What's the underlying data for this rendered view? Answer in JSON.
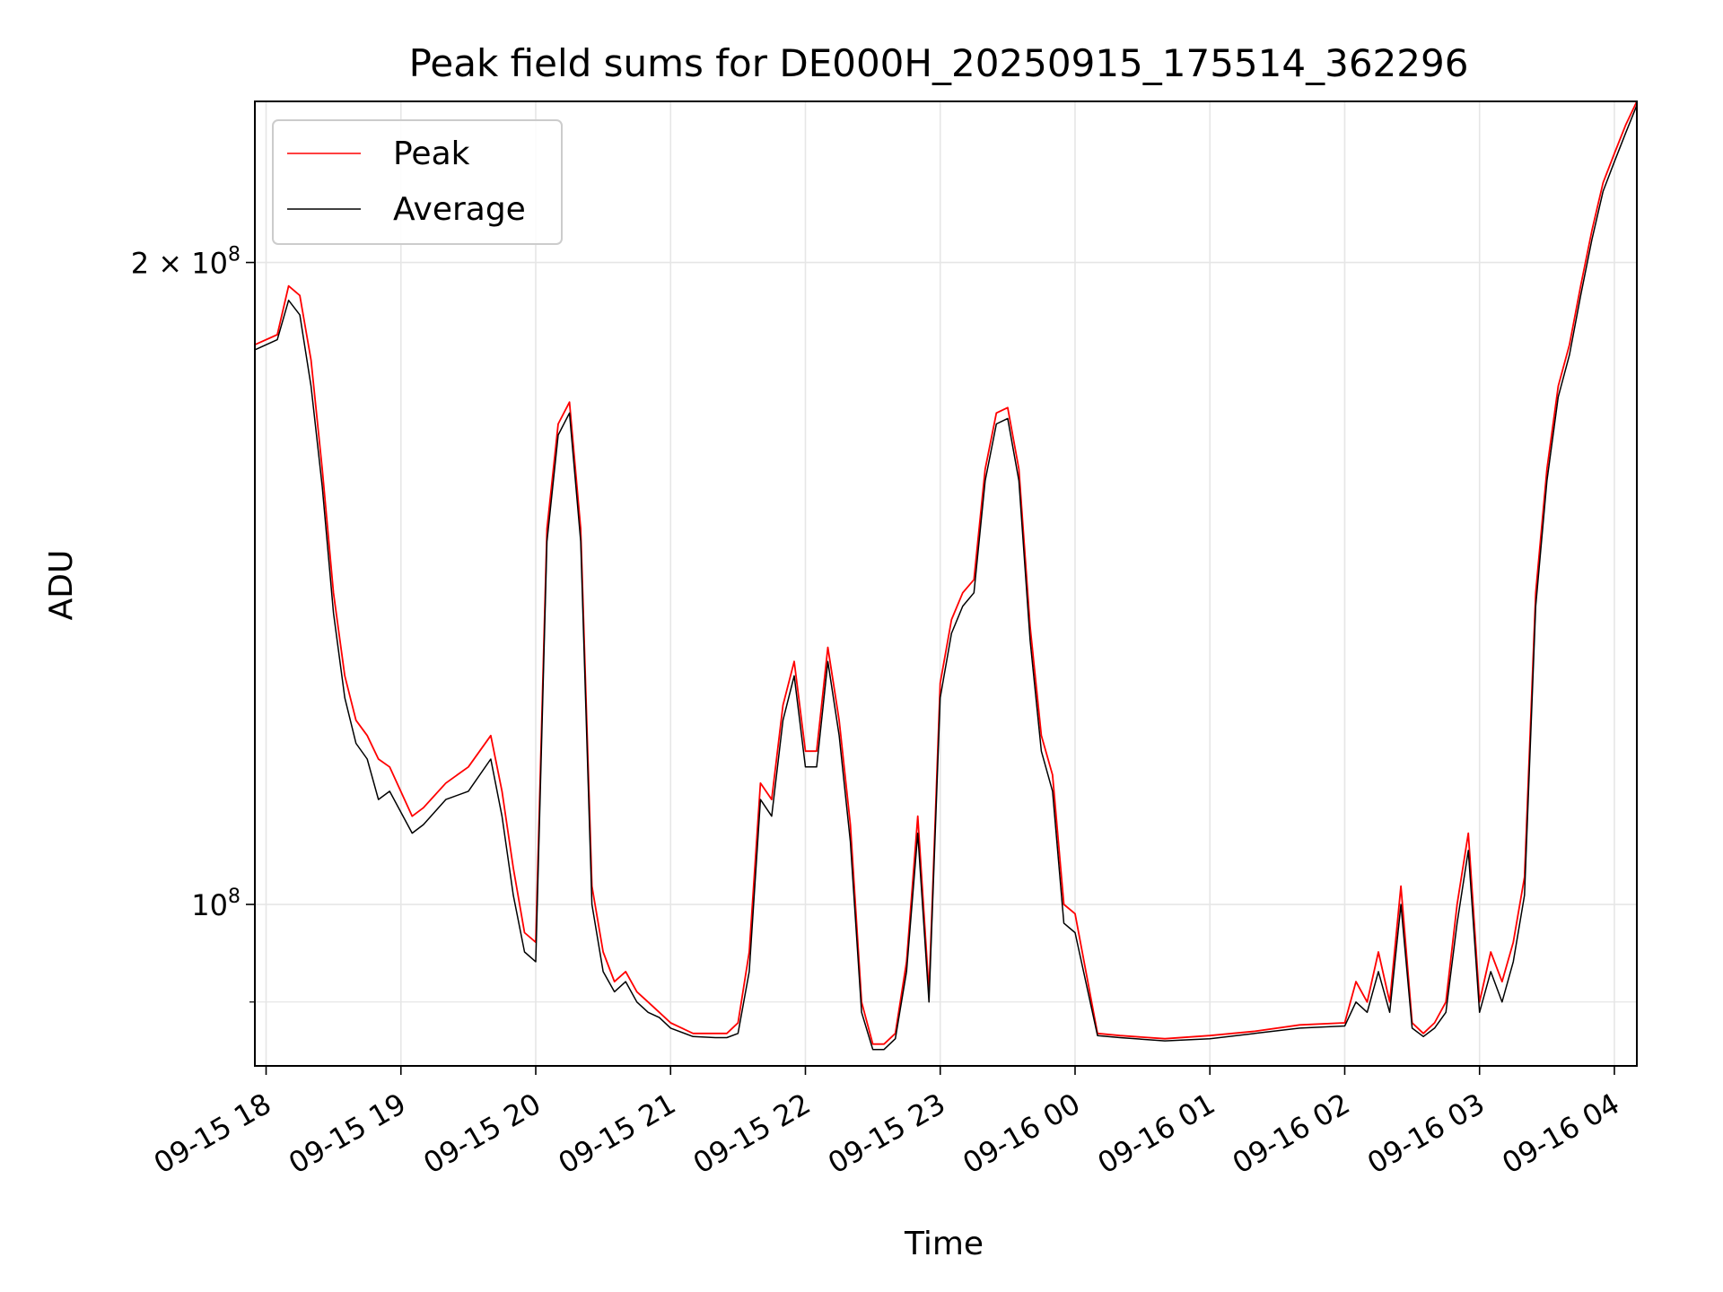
{
  "chart_data": {
    "type": "line",
    "title": "Peak field sums for DE000H_20250915_175514_362296",
    "xlabel": "Time",
    "ylabel": "ADU",
    "y_scale": "log",
    "ylim": [
      84000000,
      238000000
    ],
    "xlim": [
      "2025-09-15 17:55",
      "2025-09-16 04:10"
    ],
    "grid": true,
    "legend_position": "upper-left",
    "x_tick_labels": [
      "09-15 18",
      "09-15 19",
      "09-15 20",
      "09-15 21",
      "09-15 22",
      "09-15 23",
      "09-16 00",
      "09-16 01",
      "09-16 02",
      "09-16 03",
      "09-16 04"
    ],
    "x_tick_values": [
      "2025-09-15 18:00",
      "2025-09-15 19:00",
      "2025-09-15 20:00",
      "2025-09-15 21:00",
      "2025-09-15 22:00",
      "2025-09-15 23:00",
      "2025-09-16 00:00",
      "2025-09-16 01:00",
      "2025-09-16 02:00",
      "2025-09-16 03:00",
      "2025-09-16 04:00"
    ],
    "y_tick_labels": [
      {
        "value": 100000000,
        "mantissa": "",
        "base": "10",
        "exp": "8"
      },
      {
        "value": 200000000,
        "mantissa": "2",
        "base": "10",
        "exp": "8"
      }
    ],
    "series_colors": {
      "Peak": "#ff0000",
      "Average": "#000000"
    },
    "x": [
      "2025-09-15 17:55",
      "2025-09-15 18:05",
      "2025-09-15 18:10",
      "2025-09-15 18:15",
      "2025-09-15 18:20",
      "2025-09-15 18:25",
      "2025-09-15 18:30",
      "2025-09-15 18:35",
      "2025-09-15 18:40",
      "2025-09-15 18:45",
      "2025-09-15 18:50",
      "2025-09-15 18:55",
      "2025-09-15 19:05",
      "2025-09-15 19:10",
      "2025-09-15 19:20",
      "2025-09-15 19:30",
      "2025-09-15 19:40",
      "2025-09-15 19:45",
      "2025-09-15 19:50",
      "2025-09-15 19:55",
      "2025-09-15 20:00",
      "2025-09-15 20:05",
      "2025-09-15 20:10",
      "2025-09-15 20:15",
      "2025-09-15 20:20",
      "2025-09-15 20:25",
      "2025-09-15 20:30",
      "2025-09-15 20:35",
      "2025-09-15 20:40",
      "2025-09-15 20:45",
      "2025-09-15 20:50",
      "2025-09-15 20:55",
      "2025-09-15 21:00",
      "2025-09-15 21:10",
      "2025-09-15 21:20",
      "2025-09-15 21:25",
      "2025-09-15 21:30",
      "2025-09-15 21:35",
      "2025-09-15 21:40",
      "2025-09-15 21:45",
      "2025-09-15 21:50",
      "2025-09-15 21:55",
      "2025-09-15 22:00",
      "2025-09-15 22:05",
      "2025-09-15 22:10",
      "2025-09-15 22:15",
      "2025-09-15 22:20",
      "2025-09-15 22:25",
      "2025-09-15 22:30",
      "2025-09-15 22:35",
      "2025-09-15 22:40",
      "2025-09-15 22:45",
      "2025-09-15 22:50",
      "2025-09-15 22:55",
      "2025-09-15 23:00",
      "2025-09-15 23:05",
      "2025-09-15 23:10",
      "2025-09-15 23:15",
      "2025-09-15 23:20",
      "2025-09-15 23:25",
      "2025-09-15 23:30",
      "2025-09-15 23:35",
      "2025-09-15 23:40",
      "2025-09-15 23:45",
      "2025-09-15 23:50",
      "2025-09-15 23:55",
      "2025-09-16 00:00",
      "2025-09-16 00:10",
      "2025-09-16 00:20",
      "2025-09-16 00:40",
      "2025-09-16 01:00",
      "2025-09-16 01:20",
      "2025-09-16 01:40",
      "2025-09-16 02:00",
      "2025-09-16 02:05",
      "2025-09-16 02:10",
      "2025-09-16 02:15",
      "2025-09-16 02:20",
      "2025-09-16 02:25",
      "2025-09-16 02:30",
      "2025-09-16 02:35",
      "2025-09-16 02:40",
      "2025-09-16 02:45",
      "2025-09-16 02:50",
      "2025-09-16 02:55",
      "2025-09-16 03:00",
      "2025-09-16 03:05",
      "2025-09-16 03:10",
      "2025-09-16 03:15",
      "2025-09-16 03:20",
      "2025-09-16 03:25",
      "2025-09-16 03:30",
      "2025-09-16 03:35",
      "2025-09-16 03:40",
      "2025-09-16 03:45",
      "2025-09-16 03:50",
      "2025-09-16 03:55",
      "2025-09-16 04:00",
      "2025-09-16 04:05",
      "2025-09-16 04:10"
    ],
    "series": [
      {
        "name": "Peak",
        "values": [
          183000000,
          185000000,
          195000000,
          193000000,
          180000000,
          160000000,
          140000000,
          128000000,
          122000000,
          120000000,
          117000000,
          116000000,
          110000000,
          111000000,
          114000000,
          116000000,
          120000000,
          113000000,
          104000000,
          97000000,
          96000000,
          150000000,
          168000000,
          172000000,
          150000000,
          102000000,
          95000000,
          92000000,
          93000000,
          91000000,
          90000000,
          89000000,
          88000000,
          87000000,
          87000000,
          87000000,
          88000000,
          95000000,
          114000000,
          112000000,
          124000000,
          130000000,
          118000000,
          118000000,
          132000000,
          122000000,
          109000000,
          90000000,
          86000000,
          86000000,
          87000000,
          94000000,
          110000000,
          91000000,
          127000000,
          136000000,
          140000000,
          142000000,
          160000000,
          170000000,
          171000000,
          160000000,
          135000000,
          120000000,
          115000000,
          100000000,
          99000000,
          87000000,
          86800000,
          86500000,
          86800000,
          87200000,
          87800000,
          88000000,
          92000000,
          90000000,
          95000000,
          90000000,
          102000000,
          88000000,
          87000000,
          88000000,
          90000000,
          100000000,
          108000000,
          90000000,
          95000000,
          92000000,
          96000000,
          103000000,
          140000000,
          160000000,
          175000000,
          183000000,
          195000000,
          207000000,
          218000000,
          225000000,
          232000000,
          238000000
        ]
      },
      {
        "name": "Average",
        "values": [
          182000000,
          184000000,
          192000000,
          189000000,
          175000000,
          157000000,
          137000000,
          125000000,
          119000000,
          117000000,
          112000000,
          113000000,
          108000000,
          109000000,
          112000000,
          113000000,
          117000000,
          110000000,
          101000000,
          95000000,
          94000000,
          148000000,
          166000000,
          170000000,
          148000000,
          100000000,
          93000000,
          91000000,
          92000000,
          90000000,
          89000000,
          88500000,
          87500000,
          86700000,
          86600000,
          86600000,
          87000000,
          93000000,
          112000000,
          110000000,
          122000000,
          128000000,
          116000000,
          116000000,
          130000000,
          120000000,
          107000000,
          89000000,
          85500000,
          85500000,
          86500000,
          93000000,
          108000000,
          90000000,
          125000000,
          134000000,
          138000000,
          140000000,
          158000000,
          168000000,
          169000000,
          158000000,
          133000000,
          118000000,
          113000000,
          98000000,
          97000000,
          86800000,
          86600000,
          86300000,
          86500000,
          87000000,
          87500000,
          87700000,
          90000000,
          89000000,
          93000000,
          89000000,
          100000000,
          87500000,
          86700000,
          87500000,
          89000000,
          98000000,
          106000000,
          89000000,
          93000000,
          90000000,
          94000000,
          101000000,
          138000000,
          158000000,
          173000000,
          181000000,
          193000000,
          205000000,
          216000000,
          223000000,
          230000000,
          237000000
        ]
      }
    ]
  }
}
